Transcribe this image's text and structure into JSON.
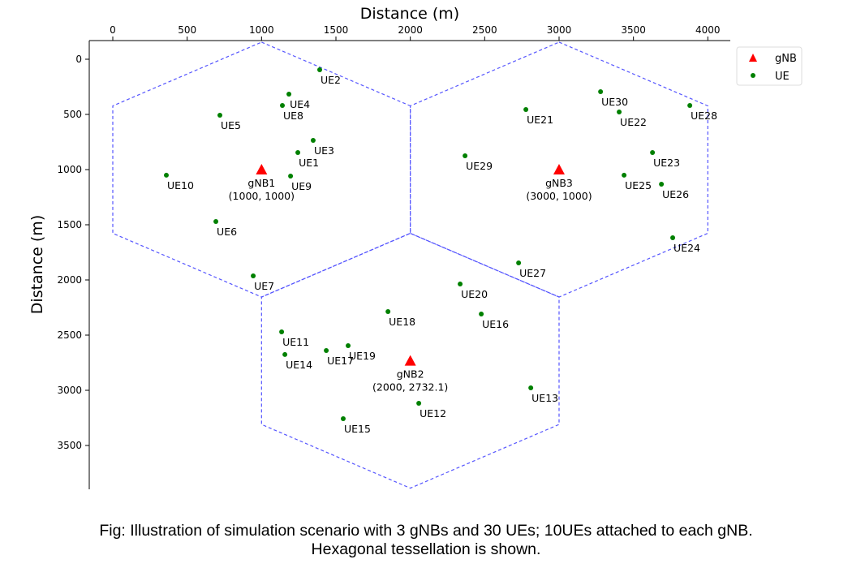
{
  "chart_data": {
    "type": "scatter",
    "xlabel": "Distance (m)",
    "ylabel": "Distance (m)",
    "xlim": [
      -160,
      4160
    ],
    "ylim": [
      3900,
      -170
    ],
    "y_inverted": true,
    "x_axis_position": "top",
    "xticks": [
      0,
      500,
      1000,
      1500,
      2000,
      2500,
      3000,
      3500,
      4000
    ],
    "yticks": [
      0,
      500,
      1000,
      1500,
      2000,
      2500,
      3000,
      3500
    ],
    "grid": false,
    "legend": {
      "placement": "top-right",
      "entries": [
        "gNB",
        "UE"
      ]
    },
    "colors": {
      "gNB": "#ff0000",
      "UE": "#008000",
      "hexagon": "#5555ff"
    },
    "hexagon_circumradius": 1154.7,
    "gnbs": [
      {
        "name": "gNB1",
        "x": 1000,
        "y": 1000,
        "coord_label": "(1000, 1000)"
      },
      {
        "name": "gNB2",
        "x": 2000,
        "y": 2732.1,
        "coord_label": "(2000, 2732.1)"
      },
      {
        "name": "gNB3",
        "x": 3000,
        "y": 1000,
        "coord_label": "(3000, 1000)"
      }
    ],
    "ues": [
      {
        "name": "UE1",
        "x": 1244,
        "y": 846
      },
      {
        "name": "UE2",
        "x": 1391,
        "y": 96
      },
      {
        "name": "UE3",
        "x": 1347,
        "y": 735
      },
      {
        "name": "UE4",
        "x": 1184,
        "y": 316
      },
      {
        "name": "UE5",
        "x": 720,
        "y": 507
      },
      {
        "name": "UE6",
        "x": 693,
        "y": 1471
      },
      {
        "name": "UE7",
        "x": 944,
        "y": 1963
      },
      {
        "name": "UE8",
        "x": 1140,
        "y": 419
      },
      {
        "name": "UE9",
        "x": 1195,
        "y": 1059
      },
      {
        "name": "UE10",
        "x": 360,
        "y": 1051
      },
      {
        "name": "UE11",
        "x": 1135,
        "y": 2471
      },
      {
        "name": "UE12",
        "x": 2057,
        "y": 3118
      },
      {
        "name": "UE13",
        "x": 2810,
        "y": 2978
      },
      {
        "name": "UE14",
        "x": 1157,
        "y": 2676
      },
      {
        "name": "UE15",
        "x": 1549,
        "y": 3257
      },
      {
        "name": "UE16",
        "x": 2477,
        "y": 2309
      },
      {
        "name": "UE17",
        "x": 1435,
        "y": 2640
      },
      {
        "name": "UE18",
        "x": 1850,
        "y": 2287
      },
      {
        "name": "UE19",
        "x": 1582,
        "y": 2596
      },
      {
        "name": "UE20",
        "x": 2335,
        "y": 2037
      },
      {
        "name": "UE21",
        "x": 2777,
        "y": 456
      },
      {
        "name": "UE22",
        "x": 3404,
        "y": 478
      },
      {
        "name": "UE23",
        "x": 3628,
        "y": 846
      },
      {
        "name": "UE24",
        "x": 3764,
        "y": 1618
      },
      {
        "name": "UE25",
        "x": 3437,
        "y": 1051
      },
      {
        "name": "UE26",
        "x": 3688,
        "y": 1132
      },
      {
        "name": "UE27",
        "x": 2728,
        "y": 1846
      },
      {
        "name": "UE28",
        "x": 3879,
        "y": 419
      },
      {
        "name": "UE29",
        "x": 2368,
        "y": 875
      },
      {
        "name": "UE30",
        "x": 3279,
        "y": 294
      }
    ]
  },
  "caption": {
    "line1": "Fig: Illustration of simulation scenario with 3 gNBs and 30 UEs; 10UEs attached to each gNB.",
    "line2": "Hexagonal tessellation is shown."
  }
}
